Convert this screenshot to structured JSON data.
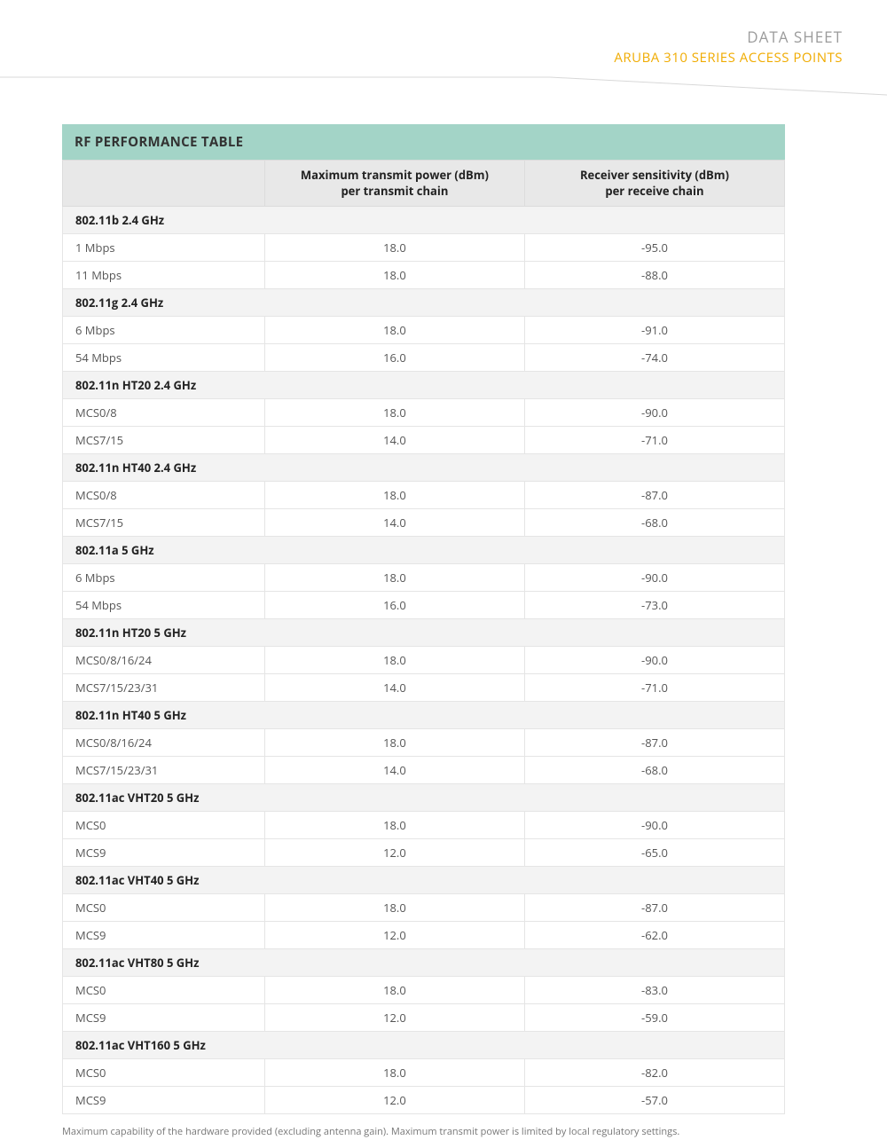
{
  "header": {
    "title": "DATA SHEET",
    "subtitle": "ARUBA 310 SERIES ACCESS POINTS"
  },
  "colors": {
    "title_bg": "#a3d4c7",
    "header_row_bg": "#e8e8e8",
    "section_row_bg": "#f3f3f3",
    "border": "#e5e5e5",
    "accent_orange": "#f0ab00",
    "header_grey": "#9b9b9b"
  },
  "table": {
    "title": "RF PERFORMANCE TABLE",
    "columns": [
      "",
      "Maximum transmit power (dBm)\nper transmit chain",
      "Receiver sensitivity (dBm)\nper receive chain"
    ],
    "sections": [
      {
        "name": "802.11b 2.4 GHz",
        "rows": [
          {
            "label": "1 Mbps",
            "tx": "18.0",
            "rx": "-95.0"
          },
          {
            "label": "11 Mbps",
            "tx": "18.0",
            "rx": "-88.0"
          }
        ]
      },
      {
        "name": "802.11g 2.4 GHz",
        "rows": [
          {
            "label": "6 Mbps",
            "tx": "18.0",
            "rx": "-91.0"
          },
          {
            "label": "54 Mbps",
            "tx": "16.0",
            "rx": "-74.0"
          }
        ]
      },
      {
        "name": "802.11n HT20 2.4 GHz",
        "rows": [
          {
            "label": "MCS0/8",
            "tx": "18.0",
            "rx": "-90.0"
          },
          {
            "label": "MCS7/15",
            "tx": "14.0",
            "rx": "-71.0"
          }
        ]
      },
      {
        "name": "802.11n HT40 2.4 GHz",
        "rows": [
          {
            "label": "MCS0/8",
            "tx": "18.0",
            "rx": "-87.0"
          },
          {
            "label": "MCS7/15",
            "tx": "14.0",
            "rx": "-68.0"
          }
        ]
      },
      {
        "name": "802.11a 5 GHz",
        "rows": [
          {
            "label": "6 Mbps",
            "tx": "18.0",
            "rx": "-90.0"
          },
          {
            "label": "54 Mbps",
            "tx": "16.0",
            "rx": "-73.0"
          }
        ]
      },
      {
        "name": "802.11n HT20 5 GHz",
        "rows": [
          {
            "label": "MCS0/8/16/24",
            "tx": "18.0",
            "rx": "-90.0"
          },
          {
            "label": "MCS7/15/23/31",
            "tx": "14.0",
            "rx": "-71.0"
          }
        ]
      },
      {
        "name": "802.11n HT40 5 GHz",
        "rows": [
          {
            "label": "MCS0/8/16/24",
            "tx": "18.0",
            "rx": "-87.0"
          },
          {
            "label": "MCS7/15/23/31",
            "tx": "14.0",
            "rx": "-68.0"
          }
        ]
      },
      {
        "name": "802.11ac VHT20 5 GHz",
        "rows": [
          {
            "label": "MCS0",
            "tx": "18.0",
            "rx": "-90.0"
          },
          {
            "label": "MCS9",
            "tx": "12.0",
            "rx": "-65.0"
          }
        ]
      },
      {
        "name": "802.11ac VHT40 5 GHz",
        "rows": [
          {
            "label": "MCS0",
            "tx": "18.0",
            "rx": "-87.0"
          },
          {
            "label": "MCS9",
            "tx": "12.0",
            "rx": "-62.0"
          }
        ]
      },
      {
        "name": "802.11ac VHT80 5 GHz",
        "rows": [
          {
            "label": "MCS0",
            "tx": "18.0",
            "rx": "-83.0"
          },
          {
            "label": "MCS9",
            "tx": "12.0",
            "rx": "-59.0"
          }
        ]
      },
      {
        "name": "802.11ac VHT160 5 GHz",
        "rows": [
          {
            "label": "MCS0",
            "tx": "18.0",
            "rx": "-82.0"
          },
          {
            "label": "MCS9",
            "tx": "12.0",
            "rx": "-57.0"
          }
        ]
      }
    ],
    "footnote": "Maximum capability of the hardware provided (excluding antenna gain). Maximum transmit power is limited by local regulatory settings."
  }
}
